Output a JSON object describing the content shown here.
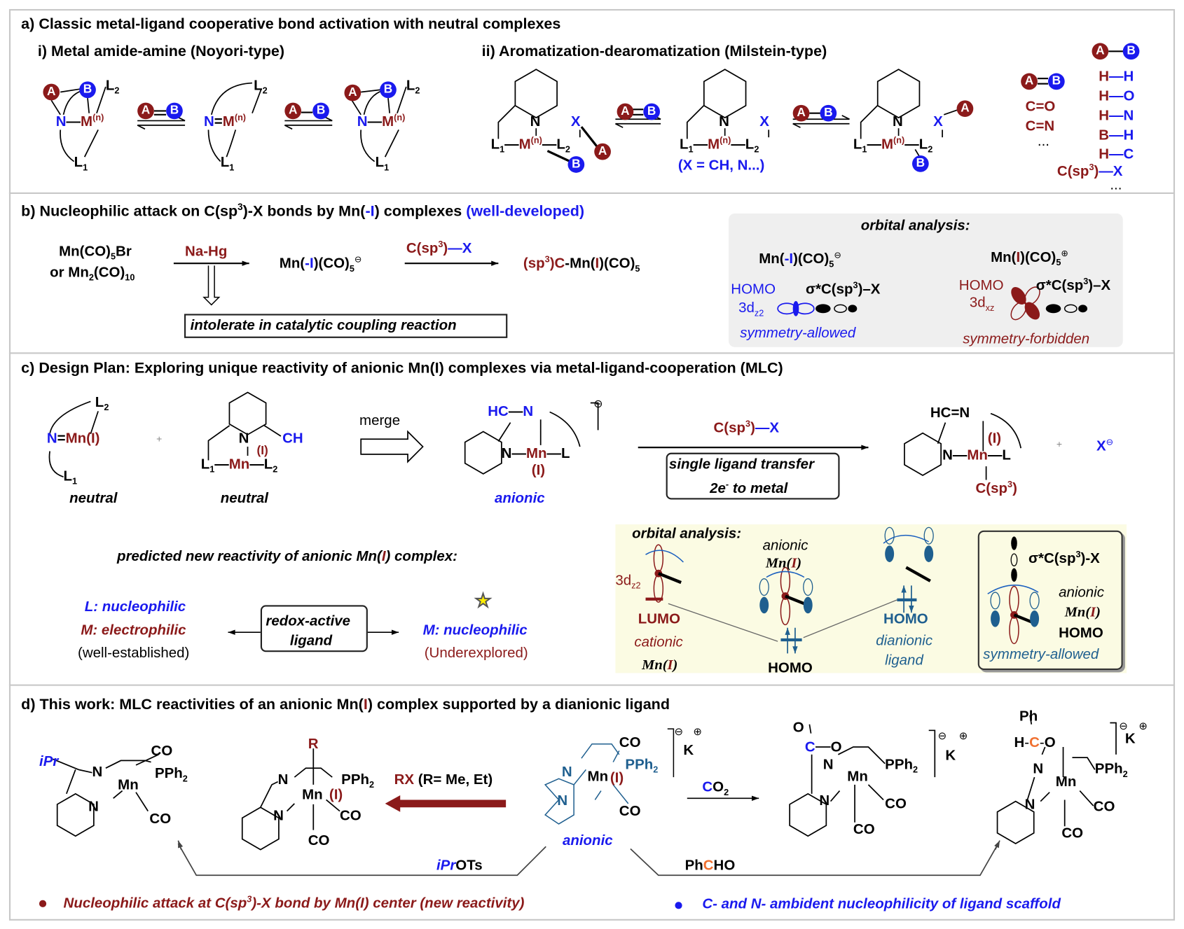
{
  "colors": {
    "dark_red": "#8b1a1a",
    "blue": "#1a1aee",
    "teal": "#1f5f8f",
    "orange": "#f07030",
    "star": "#ffee00"
  },
  "atoms": {
    "A": "A",
    "B": "B",
    "N": "N",
    "M": "M",
    "n": "(n)",
    "L": "L",
    "one": "1",
    "two": "2",
    "X": "X",
    "dash": "—",
    "eq": "=",
    "Mn": "Mn",
    "I": "(I)",
    "CO": "CO",
    "PPh": "PPh",
    "K": "K",
    "minus": "⊖",
    "plus": "⊕",
    "H": "H",
    "C": "C",
    "O": "O",
    "R": "R",
    "Ph": "Ph",
    "CH": "CH",
    "HC": "HC",
    "ellipsis": "..."
  },
  "a": {
    "title": "a) Classic metal-ligand cooperative bond activation with neutral complexes",
    "sub_i": "i) Metal amide-amine (Noyori-type)",
    "sub_ii": "ii) Aromatization-dearomatization (Milstein-type)",
    "x_note": "(X = CH, N...)",
    "double_bonds": [
      "C=O",
      "C=N"
    ],
    "single_bonds": [
      [
        "H",
        "—H"
      ],
      [
        "H",
        "—O"
      ],
      [
        "H",
        "—N"
      ],
      [
        "B",
        "—H"
      ],
      [
        "H",
        "—C"
      ]
    ],
    "csp3x": [
      "C(sp",
      "3",
      ")",
      "—X"
    ]
  },
  "b": {
    "title": [
      "b) Nucleophilic attack on C(sp",
      "3",
      ")-X bonds by Mn(",
      "-I",
      ") complexes ",
      "(well-developed)"
    ],
    "start1": [
      "Mn(CO)",
      "5",
      "Br"
    ],
    "start2": [
      "or Mn",
      "2",
      "(CO)",
      "10"
    ],
    "reagent1": "Na-Hg",
    "intermediate": [
      "Mn(",
      "-I",
      ")(CO)",
      "5",
      "⊖"
    ],
    "reagent2": [
      "C(sp",
      "3",
      ")",
      "—X"
    ],
    "product": [
      "(sp",
      "3",
      ")C",
      "-Mn(",
      "I",
      ")(CO)",
      "5"
    ],
    "note": "intolerate in catalytic coupling reaction",
    "orbital": {
      "title": "orbital analysis:",
      "left_complex": [
        "Mn(",
        "-I",
        ")(CO)",
        "5",
        "⊖"
      ],
      "right_complex": [
        "Mn(",
        "I",
        ")(CO)",
        "5",
        "⊕"
      ],
      "homo": "HOMO",
      "sigma": [
        "σ*C(sp",
        "3",
        ")–X"
      ],
      "left_orbital": [
        "3d",
        "z2"
      ],
      "right_orbital": [
        "3d",
        "xz"
      ],
      "left_verdict": "symmetry-allowed",
      "right_verdict": "symmetry-forbidden"
    }
  },
  "c": {
    "title": "c) Design Plan: Exploring unique reactivity of anionic Mn(I) complexes via metal-ligand-cooperation (MLC)",
    "neutral": "neutral",
    "plus": "+",
    "merge": "merge",
    "anionic": "anionic",
    "reagent": [
      "C(sp",
      "3",
      ")",
      "—X"
    ],
    "transfer_line1": "single ligand transfer",
    "transfer_line2": [
      "2e",
      "-",
      " to metal"
    ],
    "product_csp3": [
      "C(sp",
      "3",
      ")"
    ],
    "prediction_title": [
      "predicted new reactivity of anionic Mn(",
      "I",
      ") complex:"
    ],
    "left_lines": [
      "L: nucleophilic",
      "M: electrophilic",
      "(well-established)"
    ],
    "center_box": [
      "redox-active",
      "ligand"
    ],
    "right_lines": [
      "M: nucleophilic",
      "(Underexplored)"
    ],
    "orbital": {
      "title": "orbital analysis:",
      "d_orbital": [
        "3d",
        "z2"
      ],
      "lumo": "LUMO",
      "cationic": "cationic",
      "mn_label": [
        "Mn(",
        "I",
        ")"
      ],
      "anionic": "anionic",
      "homo": "HOMO",
      "dianionic": "dianionic",
      "ligand": "ligand",
      "sigma": [
        "σ*C(sp",
        "3",
        ")-X"
      ],
      "verdict": "symmetry-allowed"
    }
  },
  "d": {
    "title": [
      "d) This work: MLC reactivities of an anionic Mn(",
      "I",
      ") complex supported by a dianionic ligand"
    ],
    "ipr": "iPr",
    "rx": [
      "RX",
      " (R= Me, Et)"
    ],
    "co2": [
      "C",
      "O",
      "2"
    ],
    "anionic": "anionic",
    "iprots": [
      "iPr",
      "OTs"
    ],
    "phcho": [
      "Ph",
      "C",
      "HO"
    ],
    "bullet_left": [
      "Nucleophilic attack at C(sp",
      "3",
      ")-X bond by Mn(I) center (new reactivity)"
    ],
    "bullet_right": "C- and N- ambident nucleophilicity of ligand scaffold"
  }
}
